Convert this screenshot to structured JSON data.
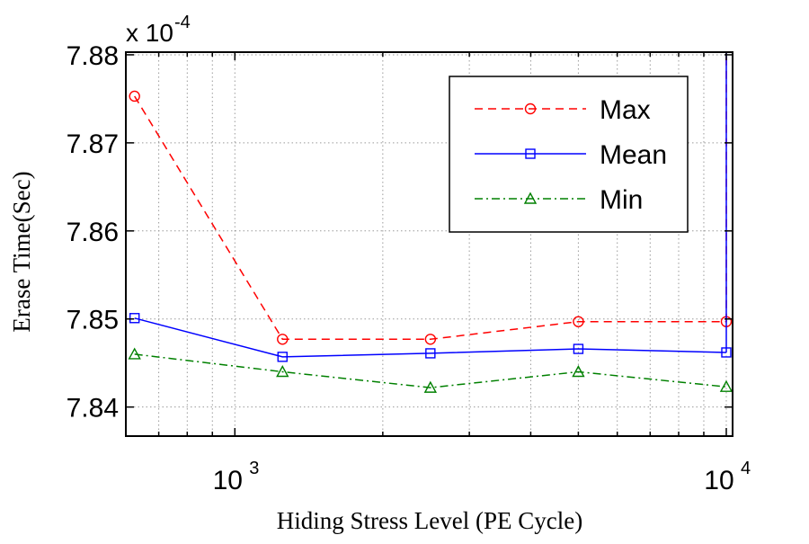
{
  "chart_data": {
    "type": "line",
    "xlabel": "Hiding Stress Level (PE Cycle)",
    "ylabel": "Erase Time(Sec)",
    "y_multiplier": {
      "base": "x 10",
      "exponent": "-4"
    },
    "x_scale": "log",
    "xlim": [
      600,
      10300
    ],
    "ylim": [
      7.8367,
      7.8803
    ],
    "x_ticks": [
      {
        "value": 1000,
        "base": "10",
        "exponent": "3"
      },
      {
        "value": 10000,
        "base": "10",
        "exponent": "4"
      }
    ],
    "y_ticks": [
      7.84,
      7.85,
      7.86,
      7.87,
      7.88
    ],
    "y_tick_labels": [
      "7.84",
      "7.85",
      "7.86",
      "7.87",
      "7.88"
    ],
    "grid": true,
    "legend_position": "top-right",
    "series": [
      {
        "name": "Max",
        "color": "#ff0000",
        "line_style": "dashed",
        "marker": "circle",
        "x": [
          625,
          1250,
          2500,
          5000,
          10000
        ],
        "y": [
          7.8753,
          7.8477,
          7.8477,
          7.8497,
          7.8497
        ],
        "trailing_segment": {
          "x": [
            10000,
            10000
          ],
          "y": [
            7.8497,
            7.8803
          ]
        }
      },
      {
        "name": "Mean",
        "color": "#0000ff",
        "line_style": "solid",
        "marker": "square",
        "x": [
          625,
          1250,
          2500,
          5000,
          10000
        ],
        "y": [
          7.8501,
          7.8457,
          7.8461,
          7.8466,
          7.8462
        ],
        "trailing_segment": {
          "x": [
            10000,
            10000
          ],
          "y": [
            7.8462,
            7.8803
          ]
        }
      },
      {
        "name": "Min",
        "color": "#008000",
        "line_style": "dashdot",
        "marker": "triangle",
        "x": [
          625,
          1250,
          2500,
          5000,
          10000
        ],
        "y": [
          7.846,
          7.844,
          7.8422,
          7.844,
          7.8423
        ]
      }
    ]
  }
}
